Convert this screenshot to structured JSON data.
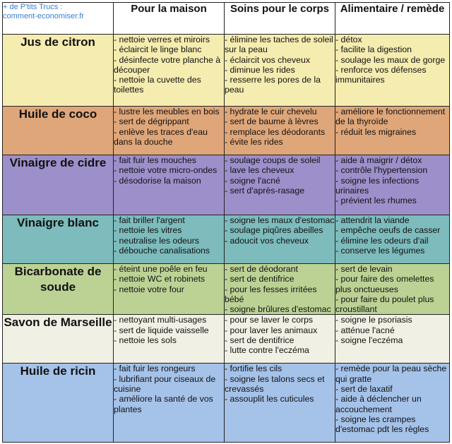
{
  "source": {
    "line1": "+ de P'tits Trucs :",
    "line2": "comment-economiser.fr"
  },
  "columns": [
    "Pour la maison",
    "Soins pour le corps",
    "Alimentaire / remède"
  ],
  "rows": [
    {
      "name": "Jus de citron",
      "color": "#f5ecb0",
      "maison": [
        "- nettoie verres et miroirs",
        "- éclaircit le linge blanc",
        "- désinfecte votre planche à découper",
        "- nettoie la cuvette des toilettes"
      ],
      "corps": [
        "- élimine les taches de soleil sur la peau",
        "- éclaircit vos cheveux",
        "- diminue les rides",
        "- resserre les pores de la peau"
      ],
      "alimentaire": [
        "- détox",
        "- facilite la digestion",
        "- soulage les maux de gorge",
        "- renforce vos défenses immunitaires"
      ]
    },
    {
      "name": "Huile de coco",
      "color": "#dfa679",
      "maison": [
        "- lustre les meubles en bois",
        "- sert de dégrippant",
        "- enlève les traces d'eau dans la douche"
      ],
      "corps": [
        "- hydrate le cuir chevelu",
        "- sert de baume à lèvres",
        "- remplace les déodorants",
        "- évite les rides"
      ],
      "alimentaire": [
        "- améliore le fonctionnement de la thyroïde",
        "- réduit les migraines"
      ]
    },
    {
      "name": "Vinaigre de cidre",
      "color": "#9d8fca",
      "maison": [
        "- fait fuir les mouches",
        "- nettoie votre micro-ondes",
        "- désodorise la maison"
      ],
      "corps": [
        "- soulage coups de soleil",
        "- lave les cheveux",
        "- soigne l'acné",
        "- sert d'après-rasage"
      ],
      "alimentaire": [
        "- aide à maigrir / détox",
        "- contrôle l'hypertension",
        "- soigne les infections urinaires",
        "- prévient les rhumes"
      ]
    },
    {
      "name": "Vinaigre blanc",
      "color": "#7dbbbc",
      "maison": [
        "- fait briller l'argent",
        "- nettoie les vitres",
        "- neutralise les odeurs",
        "- débouche canalisations"
      ],
      "corps": [
        "- soigne les maux d'estomac",
        "- soulage piqûres abeilles",
        "- adoucit vos cheveux"
      ],
      "alimentaire": [
        "- attendrit la viande",
        "- empêche oeufs de casser",
        "- élimine les odeurs d'ail",
        "- conserve les légumes"
      ]
    },
    {
      "name": "Bicarbonate de soude",
      "color": "#bcd295",
      "maison": [
        "- éteint une poêle en feu",
        "- nettoie WC et robinets",
        "- nettoie votre four"
      ],
      "corps": [
        "- sert de déodorant",
        "- sert de dentifrice",
        "- pour les fesses irritées bébé",
        "- soigne brûlures d'estomac"
      ],
      "alimentaire": [
        "- sert de levain",
        "- pour faire des omelettes plus onctueuses",
        "- pour faire du poulet plus croustillant"
      ]
    },
    {
      "name": "Savon de Marseille",
      "color": "#f1f0e4",
      "maison": [
        "- nettoyant multi-usages",
        "- sert de liquide vaisselle",
        "- nettoie les sols"
      ],
      "corps": [
        "- pour se laver le corps",
        "- pour laver les animaux",
        "- sert de dentifrice",
        "- lutte contre l'eczéma"
      ],
      "alimentaire": [
        "- soigne le psoriasis",
        "- atténue l'acné",
        "- soigne l'eczéma"
      ]
    },
    {
      "name": "Huile de ricin",
      "color": "#a5c2e9",
      "maison": [
        "- fait fuir les rongeurs",
        "- lubrifiant pour ciseaux de cuisine",
        "- améliore la santé de vos plantes"
      ],
      "corps": [
        "- fortifie les cils",
        "- soigne les talons secs et crevassés",
        "- assouplit les cuticules"
      ],
      "alimentaire": [
        "- remède pour la peau sèche qui gratte",
        "- sert de laxatif",
        "- aide à déclencher un accouchement",
        "- soigne les crampes d'estomac pdt les règles"
      ]
    }
  ]
}
